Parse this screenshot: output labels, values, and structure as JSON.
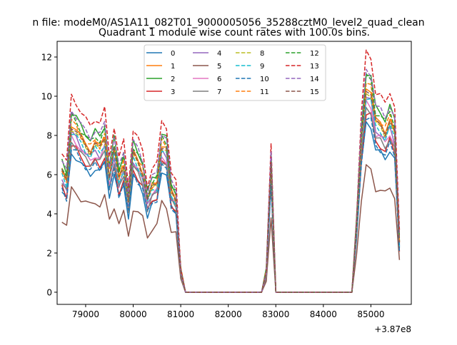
{
  "chart_data": {
    "type": "line",
    "suptitle": "n file: modeM0/AS1A11_082T01_9000005056_35288cztM0_level2_quad_clean",
    "title": "Quadrant 1 module wise count rates with 100.0s bins.",
    "xlabel": "",
    "ylabel": "",
    "x_offset_label": "+3.87e8",
    "xlim": [
      78400,
      85850
    ],
    "ylim": [
      -0.62,
      12.8
    ],
    "x_ticks": [
      79000,
      80000,
      81000,
      82000,
      83000,
      84000,
      85000
    ],
    "x_tick_labels": [
      "79000",
      "80000",
      "81000",
      "82000",
      "83000",
      "84000",
      "85000"
    ],
    "y_ticks": [
      0,
      2,
      4,
      6,
      8,
      10,
      12
    ],
    "y_tick_labels": [
      "0",
      "2",
      "4",
      "6",
      "8",
      "10",
      "12"
    ],
    "grid": false,
    "legend_position": "top-center",
    "legend_columns": 4,
    "series": [
      {
        "name": "0",
        "color": "#1f77b4",
        "dash": "solid",
        "scale": 0.71
      },
      {
        "name": "1",
        "color": "#ff7f0e",
        "dash": "solid",
        "scale": 0.86
      },
      {
        "name": "2",
        "color": "#2ca02c",
        "dash": "solid",
        "scale": 0.92
      },
      {
        "name": "3",
        "color": "#d62728",
        "dash": "solid",
        "scale": 0.75
      },
      {
        "name": "4",
        "color": "#9467bd",
        "dash": "solid",
        "scale": 0.81
      },
      {
        "name": "5",
        "color": "#8c564b",
        "dash": "solid",
        "scale": 0.52
      },
      {
        "name": "6",
        "color": "#e377c2",
        "dash": "solid",
        "scale": 0.79
      },
      {
        "name": "7",
        "color": "#7f7f7f",
        "dash": "solid",
        "scale": 0.77
      },
      {
        "name": "8",
        "color": "#bcbd22",
        "dash": "dashed",
        "scale": 0.84
      },
      {
        "name": "9",
        "color": "#17becf",
        "dash": "dashed",
        "scale": 0.82
      },
      {
        "name": "10",
        "color": "#1f77b4",
        "dash": "dashed",
        "scale": 0.73
      },
      {
        "name": "11",
        "color": "#ff7f0e",
        "dash": "dashed",
        "scale": 0.87
      },
      {
        "name": "12",
        "color": "#2ca02c",
        "dash": "dashed",
        "scale": 0.9
      },
      {
        "name": "13",
        "color": "#d62728",
        "dash": "dashed",
        "scale": 1.0
      },
      {
        "name": "14",
        "color": "#9467bd",
        "dash": "dashed",
        "scale": 0.93
      },
      {
        "name": "15",
        "color": "#8c564b",
        "dash": "dashed",
        "scale": 0.85
      }
    ],
    "x": [
      78500,
      78600,
      78700,
      78800,
      78900,
      79000,
      79100,
      79200,
      79300,
      79400,
      79500,
      79600,
      79700,
      79800,
      79900,
      80000,
      80100,
      80200,
      80300,
      80400,
      80500,
      80600,
      80700,
      80800,
      80900,
      81000,
      81100,
      81200,
      82700,
      82800,
      82900,
      83000,
      84600,
      84700,
      84800,
      84900,
      85000,
      85100,
      85200,
      85300,
      85400,
      85500,
      85600
    ],
    "profile": [
      7.2,
      6.6,
      10.0,
      9.7,
      9.2,
      8.8,
      8.5,
      8.9,
      8.6,
      9.3,
      7.0,
      8.5,
      6.8,
      7.7,
      5.5,
      8.3,
      7.8,
      7.2,
      5.5,
      6.3,
      6.5,
      8.8,
      8.5,
      6.0,
      5.6,
      1.3,
      0.0,
      0.0,
      0.0,
      1.2,
      7.6,
      0.0,
      0.0,
      4.0,
      9.1,
      12.2,
      12.0,
      10.2,
      10.0,
      9.6,
      10.3,
      9.5,
      3.0
    ]
  }
}
